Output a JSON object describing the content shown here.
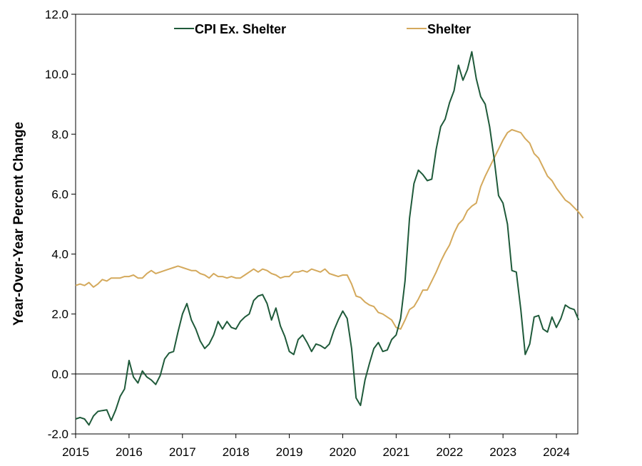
{
  "chart_data": {
    "type": "line",
    "title": "",
    "xlabel": "",
    "ylabel": "Year-Over-Year Percent Change",
    "xlim": [
      2015.0,
      2024.4
    ],
    "ylim": [
      -2.0,
      12.0
    ],
    "grid": false,
    "legend_position": "top",
    "x_ticks": [
      2015,
      2016,
      2017,
      2018,
      2019,
      2020,
      2021,
      2022,
      2023,
      2024
    ],
    "x_tick_labels": [
      "2015",
      "2016",
      "2017",
      "2018",
      "2019",
      "2020",
      "2021",
      "2022",
      "2023",
      "2024"
    ],
    "y_ticks": [
      -2.0,
      0.0,
      2.0,
      4.0,
      6.0,
      8.0,
      10.0,
      12.0
    ],
    "y_tick_labels": [
      "-2.0",
      "0.0",
      "2.0",
      "4.0",
      "6.0",
      "8.0",
      "10.0",
      "12.0"
    ],
    "x_start": 2015.0,
    "x_step": 0.08333,
    "series": [
      {
        "name": "CPI Ex. Shelter",
        "color": "#1f5a3a",
        "values": [
          -1.5,
          -1.45,
          -1.5,
          -1.7,
          -1.4,
          -1.25,
          -1.22,
          -1.2,
          -1.55,
          -1.2,
          -0.75,
          -0.5,
          0.45,
          -0.1,
          -0.3,
          0.1,
          -0.1,
          -0.2,
          -0.35,
          -0.05,
          0.5,
          0.7,
          0.75,
          1.4,
          2.0,
          2.35,
          1.8,
          1.5,
          1.1,
          0.85,
          1.0,
          1.3,
          1.75,
          1.5,
          1.75,
          1.55,
          1.5,
          1.75,
          1.9,
          2.0,
          2.45,
          2.6,
          2.65,
          2.35,
          1.8,
          2.2,
          1.6,
          1.25,
          0.75,
          0.65,
          1.15,
          1.3,
          1.05,
          0.75,
          1.0,
          0.95,
          0.85,
          1.0,
          1.45,
          1.8,
          2.1,
          1.85,
          0.85,
          -0.8,
          -1.05,
          -0.2,
          0.35,
          0.85,
          1.05,
          0.75,
          0.8,
          1.15,
          1.3,
          1.85,
          3.1,
          5.2,
          6.35,
          6.8,
          6.65,
          6.45,
          6.5,
          7.5,
          8.25,
          8.5,
          9.05,
          9.45,
          10.3,
          9.8,
          10.15,
          10.75,
          9.85,
          9.25,
          9.0,
          8.25,
          7.2,
          5.95,
          5.7,
          5.0,
          3.45,
          3.4,
          2.15,
          0.65,
          1.0,
          1.9,
          1.95,
          1.5,
          1.4,
          1.9,
          1.55,
          1.85,
          2.3,
          2.2,
          2.15,
          1.8
        ]
      },
      {
        "name": "Shelter",
        "color": "#d4a95c",
        "values": [
          2.95,
          3.0,
          2.95,
          3.05,
          2.9,
          3.0,
          3.15,
          3.1,
          3.2,
          3.2,
          3.2,
          3.25,
          3.25,
          3.3,
          3.2,
          3.2,
          3.35,
          3.45,
          3.35,
          3.4,
          3.45,
          3.5,
          3.55,
          3.6,
          3.55,
          3.5,
          3.45,
          3.45,
          3.35,
          3.3,
          3.2,
          3.35,
          3.25,
          3.25,
          3.2,
          3.25,
          3.2,
          3.2,
          3.3,
          3.4,
          3.5,
          3.4,
          3.5,
          3.45,
          3.35,
          3.3,
          3.2,
          3.25,
          3.25,
          3.4,
          3.4,
          3.45,
          3.4,
          3.5,
          3.45,
          3.4,
          3.5,
          3.35,
          3.3,
          3.25,
          3.3,
          3.3,
          3.0,
          2.6,
          2.55,
          2.4,
          2.3,
          2.25,
          2.05,
          2.0,
          1.9,
          1.8,
          1.55,
          1.5,
          1.8,
          2.15,
          2.25,
          2.5,
          2.8,
          2.8,
          3.1,
          3.4,
          3.75,
          4.05,
          4.3,
          4.7,
          5.0,
          5.15,
          5.45,
          5.6,
          5.7,
          6.25,
          6.6,
          6.9,
          7.2,
          7.5,
          7.8,
          8.05,
          8.15,
          8.1,
          8.05,
          7.85,
          7.7,
          7.35,
          7.2,
          6.9,
          6.6,
          6.45,
          6.2,
          6.0,
          5.8,
          5.7,
          5.55,
          5.4,
          5.2
        ]
      }
    ]
  }
}
